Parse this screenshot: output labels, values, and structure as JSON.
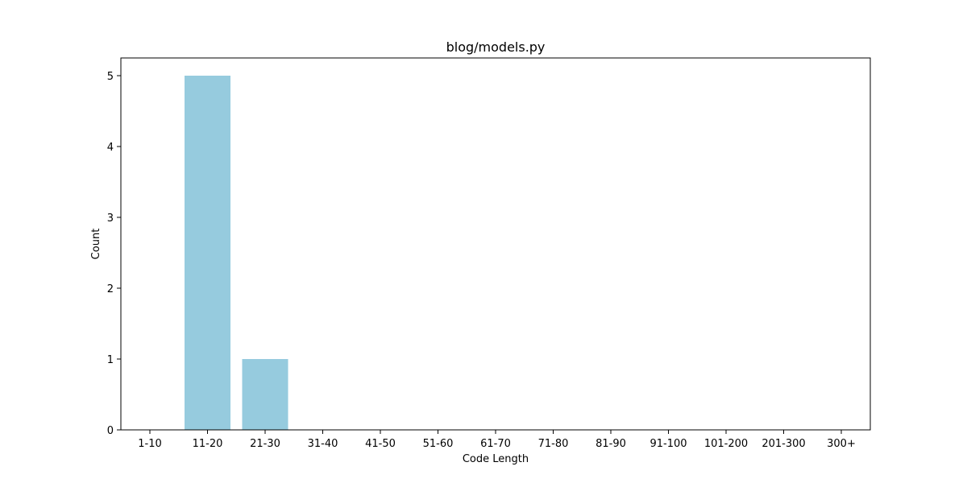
{
  "chart_data": {
    "type": "bar",
    "title": "blog/models.py",
    "xlabel": "Code Length",
    "ylabel": "Count",
    "categories": [
      "1-10",
      "11-20",
      "21-30",
      "31-40",
      "41-50",
      "51-60",
      "61-70",
      "71-80",
      "81-90",
      "91-100",
      "101-200",
      "201-300",
      "300+"
    ],
    "values": [
      0,
      5,
      1,
      0,
      0,
      0,
      0,
      0,
      0,
      0,
      0,
      0,
      0
    ],
    "ylim": [
      0,
      5.25
    ],
    "yticks": [
      0,
      1,
      2,
      3,
      4,
      5
    ],
    "grid": false,
    "bar_color": "#96cbde"
  }
}
